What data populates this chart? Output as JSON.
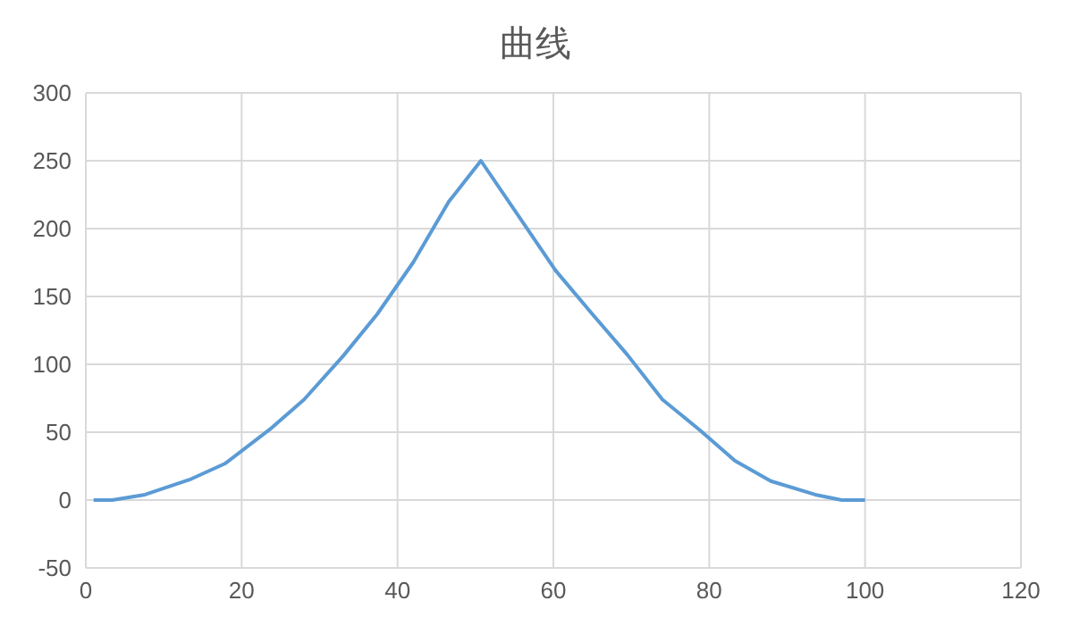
{
  "chart_data": {
    "type": "line",
    "title": "曲线",
    "x": [
      1,
      3.4,
      7.6,
      13.3,
      17.9,
      23.6,
      28,
      33,
      37.4,
      42,
      46.6,
      50.7,
      55.8,
      60.3,
      65,
      69.5,
      74,
      78.7,
      83.3,
      87.9,
      93.6,
      97,
      100
    ],
    "series": [
      {
        "color": "#5b9bd5",
        "values": [
          0,
          0,
          4,
          15,
          27,
          52,
          74,
          106,
          137,
          175,
          220,
          250,
          207,
          169,
          137,
          107,
          74,
          52,
          29,
          14,
          4,
          0,
          0
        ]
      }
    ],
    "xlim": [
      0,
      120
    ],
    "xticks": [
      0,
      20,
      40,
      60,
      80,
      100,
      120
    ],
    "ylim": [
      -50,
      300
    ],
    "yticks": [
      -50,
      0,
      50,
      100,
      150,
      200,
      250,
      300
    ],
    "grid": true,
    "marker": "none",
    "line_style": "solid",
    "legend": false
  }
}
